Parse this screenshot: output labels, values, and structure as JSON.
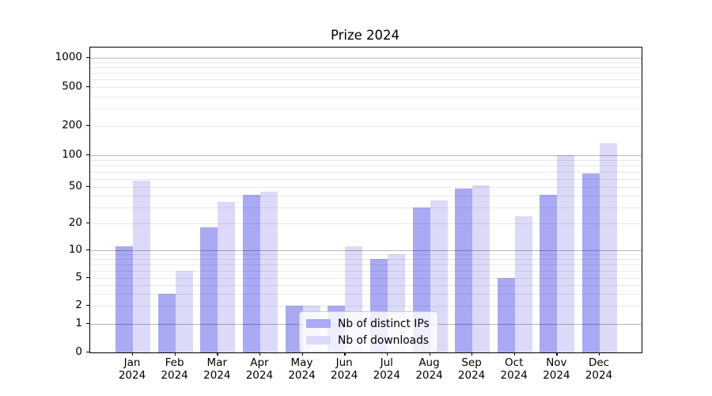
{
  "title": "Prize 2024",
  "chart_data": {
    "type": "bar",
    "title": "Prize 2024",
    "categories": [
      "Jan 2024",
      "Feb 2024",
      "Mar 2024",
      "Apr 2024",
      "May 2024",
      "Jun 2024",
      "Jul 2024",
      "Aug 2024",
      "Sep 2024",
      "Oct 2024",
      "Nov 2024",
      "Dec 2024"
    ],
    "series": [
      {
        "name": "Nb of distinct IPs",
        "color": "#a9a9f4",
        "values": [
          11,
          3,
          18,
          41,
          2,
          2,
          8,
          30,
          48,
          5,
          41,
          67
        ]
      },
      {
        "name": "Nb of downloads",
        "color": "#dbdbf9",
        "values": [
          57,
          6,
          34,
          44,
          2,
          11,
          9,
          36,
          52,
          24,
          101,
          132
        ]
      }
    ],
    "xlabel": "",
    "ylabel": "",
    "yscale": "symlog",
    "ylim": [
      0,
      1300
    ],
    "yticks": [
      0,
      1,
      2,
      5,
      10,
      20,
      50,
      100,
      200,
      500,
      1000
    ],
    "grid": "horizontal major (powers of 10) + minor (2-9 per decade), drawn over bars",
    "legend_position": "inside plot, lower center-left"
  }
}
